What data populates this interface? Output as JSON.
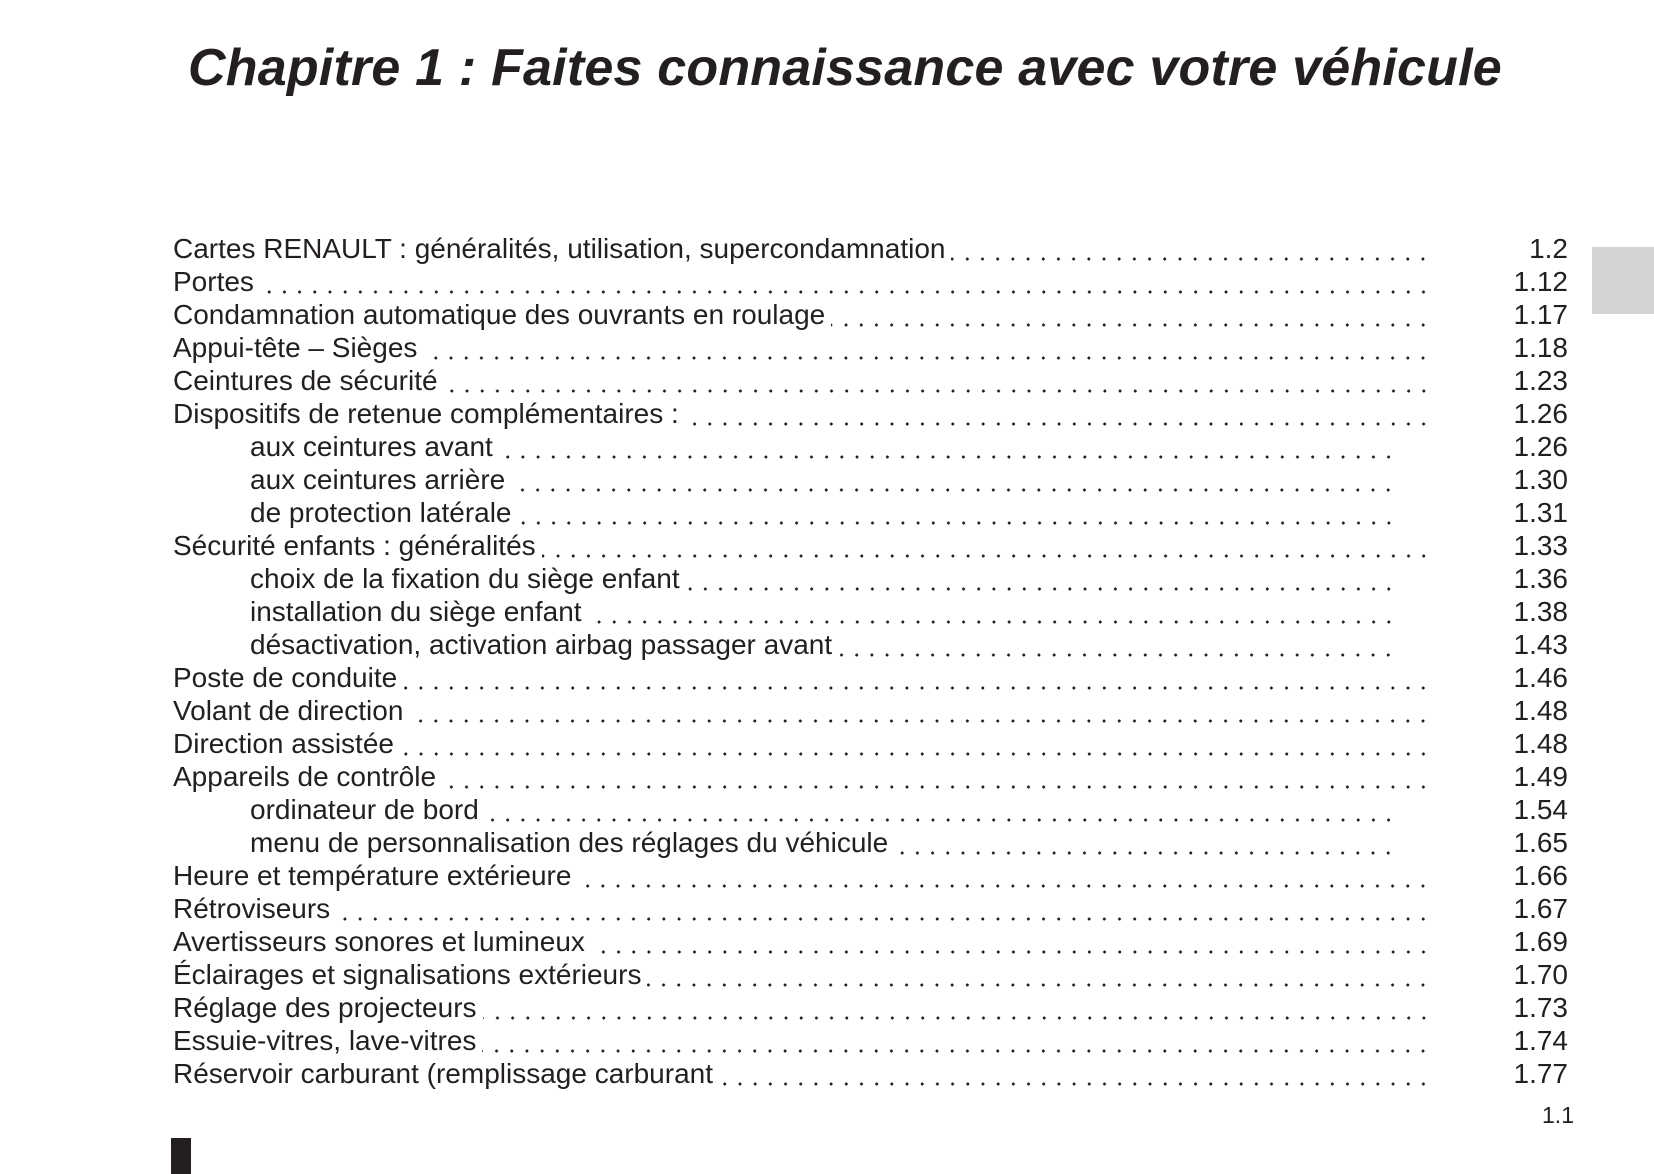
{
  "title": "Chapitre 1 : Faites connaissance avec votre véhicule",
  "toc": [
    {
      "label": "Cartes RENAULT : généralités, utilisation, supercondamnation",
      "page": "1.2",
      "level": 1
    },
    {
      "label": "Portes",
      "page": "1.12",
      "level": 1
    },
    {
      "label": "Condamnation automatique des ouvrants en roulage",
      "page": "1.17",
      "level": 1
    },
    {
      "label": "Appui-tête – Sièges",
      "page": "1.18",
      "level": 1
    },
    {
      "label": "Ceintures de sécurité",
      "page": "1.23",
      "level": 1
    },
    {
      "label": "Dispositifs de retenue complémentaires :",
      "page": "1.26",
      "level": 1
    },
    {
      "label": "aux ceintures avant",
      "page": "1.26",
      "level": 2
    },
    {
      "label": "aux ceintures arrière",
      "page": "1.30",
      "level": 2
    },
    {
      "label": "de protection latérale",
      "page": "1.31",
      "level": 2
    },
    {
      "label": "Sécurité enfants : généralités",
      "page": "1.33",
      "level": 1
    },
    {
      "label": "choix de la fixation du siège enfant",
      "page": "1.36",
      "level": 2
    },
    {
      "label": "installation du siège enfant",
      "page": "1.38",
      "level": 2
    },
    {
      "label": "désactivation, activation airbag passager avant",
      "page": "1.43",
      "level": 2
    },
    {
      "label": "Poste de conduite",
      "page": "1.46",
      "level": 1
    },
    {
      "label": "Volant de direction",
      "page": "1.48",
      "level": 1
    },
    {
      "label": "Direction assistée",
      "page": "1.48",
      "level": 1
    },
    {
      "label": "Appareils de contrôle",
      "page": "1.49",
      "level": 1
    },
    {
      "label": "ordinateur de bord",
      "page": "1.54",
      "level": 2
    },
    {
      "label": "menu de personnalisation des réglages du véhicule",
      "page": "1.65",
      "level": 2
    },
    {
      "label": "Heure et température extérieure",
      "page": "1.66",
      "level": 1
    },
    {
      "label": "Rétroviseurs",
      "page": "1.67",
      "level": 1
    },
    {
      "label": "Avertisseurs sonores et lumineux",
      "page": "1.69",
      "level": 1
    },
    {
      "label": "Éclairages et signalisations extérieurs",
      "page": "1.70",
      "level": 1
    },
    {
      "label": "Réglage des projecteurs",
      "page": "1.73",
      "level": 1
    },
    {
      "label": "Essuie-vitres, lave-vitres",
      "page": "1.74",
      "level": 1
    },
    {
      "label": "Réservoir carburant (remplissage carburant",
      "page": "1.77",
      "level": 1
    }
  ],
  "page_number": "1.1",
  "colors": {
    "text": "#231f20",
    "chapter_tab": "#d1d3d4"
  }
}
